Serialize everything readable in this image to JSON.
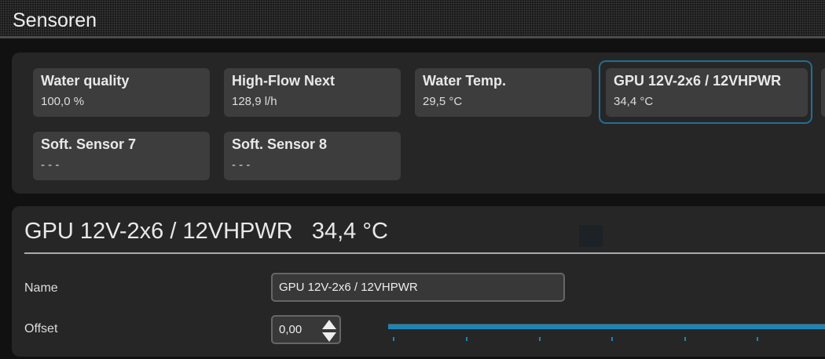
{
  "header": {
    "title": "Sensoren"
  },
  "sensors": [
    {
      "name": "Water quality",
      "value": "100,0 %"
    },
    {
      "name": "High-Flow Next",
      "value": "128,9 l/h"
    },
    {
      "name": "Water Temp.",
      "value": "29,5 °C"
    },
    {
      "name": "GPU 12V-2x6 / 12VHPWR",
      "value": "34,4 °C",
      "selected": true
    },
    {
      "name": "Soft. Sensor 7",
      "value": "- - -"
    },
    {
      "name": "Soft. Sensor 8",
      "value": "- - -"
    }
  ],
  "detail": {
    "title": "GPU 12V-2x6 / 12VHPWR",
    "value": "34,4 °C",
    "name_label": "Name",
    "name_value": "GPU 12V-2x6 / 12VHPWR",
    "offset_label": "Offset",
    "offset_value": "0,00"
  },
  "colors": {
    "accent": "#1a86b8",
    "selected_border": "#1f6f96"
  }
}
